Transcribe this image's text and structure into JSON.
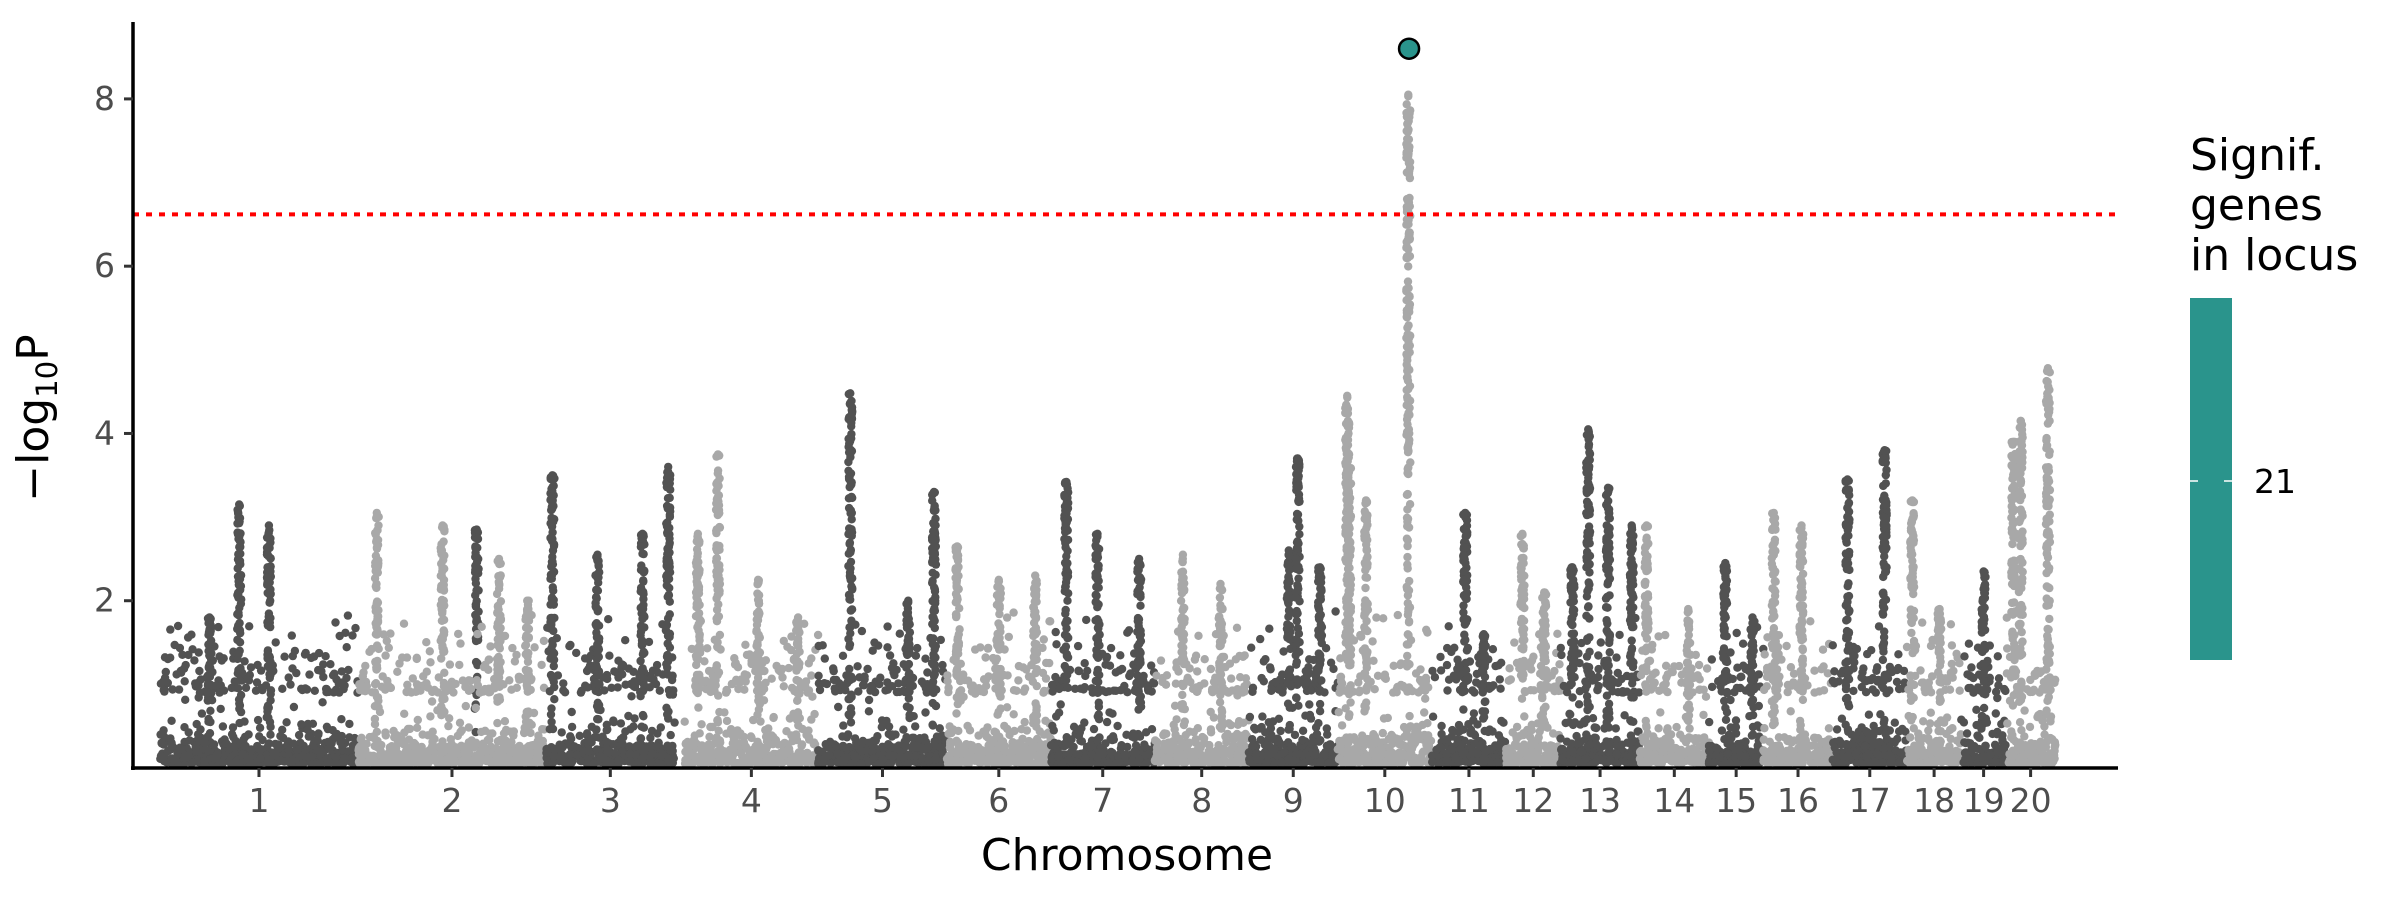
{
  "chart_data": {
    "type": "scatter",
    "subtype": "manhattan",
    "title": "",
    "xlabel": "Chromosome",
    "ylabel_prefix": "−log",
    "ylabel_subscript": "10",
    "ylabel_suffix": "P",
    "ylim": [
      0,
      8.8
    ],
    "yticks": [
      2,
      4,
      6,
      8
    ],
    "grid": false,
    "significance_threshold": 6.62,
    "colors": {
      "dark_point": "#525252",
      "light_point": "#a8a8a8",
      "highlight": "#2a948c",
      "threshold_line": "#ff0000",
      "axis": "#000000"
    },
    "chromosomes": [
      {
        "label": "1",
        "start": 0.0,
        "end": 2.0,
        "color": "dark",
        "max": 3.15,
        "peaks": [
          [
            0.4,
            3.15
          ],
          [
            0.55,
            2.9
          ],
          [
            0.25,
            1.8
          ],
          [
            1.6,
            2.85
          ]
        ]
      },
      {
        "label": "2",
        "start": 2.0,
        "end": 3.9,
        "color": "light",
        "max": 3.05,
        "peaks": [
          [
            0.1,
            3.05
          ],
          [
            0.45,
            2.9
          ],
          [
            0.75,
            2.5
          ],
          [
            0.9,
            2.0
          ]
        ]
      },
      {
        "label": "3",
        "start": 3.9,
        "end": 5.2,
        "color": "dark",
        "max": 3.6,
        "peaks": [
          [
            0.05,
            3.5
          ],
          [
            0.4,
            2.55
          ],
          [
            0.75,
            2.8
          ],
          [
            0.95,
            3.6
          ]
        ]
      },
      {
        "label": "4",
        "start": 5.3,
        "end": 6.65,
        "color": "light",
        "max": 3.75,
        "peaks": [
          [
            0.1,
            2.8
          ],
          [
            0.25,
            3.75
          ],
          [
            0.55,
            2.25
          ],
          [
            0.85,
            1.8
          ]
        ]
      },
      {
        "label": "5",
        "start": 6.65,
        "end": 7.95,
        "color": "dark",
        "max": 4.48,
        "peaks": [
          [
            0.25,
            4.48
          ],
          [
            0.7,
            2.0
          ],
          [
            0.9,
            3.3
          ]
        ]
      },
      {
        "label": "6",
        "start": 7.95,
        "end": 9.0,
        "color": "light",
        "max": 2.65,
        "peaks": [
          [
            0.1,
            2.65
          ],
          [
            0.5,
            2.25
          ],
          [
            0.85,
            2.3
          ]
        ]
      },
      {
        "label": "7",
        "start": 9.0,
        "end": 10.05,
        "color": "dark",
        "max": 3.42,
        "peaks": [
          [
            0.15,
            3.42
          ],
          [
            0.45,
            2.8
          ],
          [
            0.85,
            2.5
          ]
        ]
      },
      {
        "label": "8",
        "start": 10.05,
        "end": 11.0,
        "color": "light",
        "max": 2.55,
        "peaks": [
          [
            0.3,
            2.55
          ],
          [
            0.7,
            2.2
          ]
        ]
      },
      {
        "label": "9",
        "start": 11.0,
        "end": 11.9,
        "color": "dark",
        "max": 3.7,
        "peaks": [
          [
            0.45,
            2.6
          ],
          [
            0.55,
            3.7
          ],
          [
            0.8,
            2.4
          ]
        ]
      },
      {
        "label": "10",
        "start": 11.9,
        "end": 12.85,
        "color": "light",
        "max": 8.05,
        "peaks": [
          [
            0.1,
            4.45
          ],
          [
            0.12,
            3.75
          ],
          [
            0.3,
            3.2
          ],
          [
            0.75,
            8.05
          ]
        ]
      },
      {
        "label": "11",
        "start": 12.85,
        "end": 13.6,
        "color": "dark",
        "max": 3.05,
        "peaks": [
          [
            0.45,
            3.05
          ],
          [
            0.7,
            1.6
          ]
        ]
      },
      {
        "label": "12",
        "start": 13.6,
        "end": 14.15,
        "color": "light",
        "max": 2.8,
        "peaks": [
          [
            0.3,
            2.8
          ],
          [
            0.7,
            2.1
          ]
        ]
      },
      {
        "label": "13",
        "start": 14.15,
        "end": 14.95,
        "color": "dark",
        "max": 4.05,
        "peaks": [
          [
            0.15,
            2.4
          ],
          [
            0.35,
            4.05
          ],
          [
            0.6,
            3.35
          ],
          [
            0.9,
            2.9
          ]
        ]
      },
      {
        "label": "14",
        "start": 14.95,
        "end": 15.65,
        "color": "light",
        "max": 2.9,
        "peaks": [
          [
            0.1,
            2.9
          ],
          [
            0.7,
            1.9
          ]
        ]
      },
      {
        "label": "15",
        "start": 15.65,
        "end": 16.2,
        "color": "dark",
        "max": 2.45,
        "peaks": [
          [
            0.3,
            2.45
          ],
          [
            0.8,
            1.8
          ]
        ]
      },
      {
        "label": "16",
        "start": 16.2,
        "end": 16.9,
        "color": "light",
        "max": 3.05,
        "peaks": [
          [
            0.15,
            3.05
          ],
          [
            0.55,
            2.9
          ]
        ]
      },
      {
        "label": "17",
        "start": 16.9,
        "end": 17.65,
        "color": "dark",
        "max": 3.8,
        "peaks": [
          [
            0.2,
            3.45
          ],
          [
            0.7,
            3.8
          ]
        ]
      },
      {
        "label": "18",
        "start": 17.65,
        "end": 18.2,
        "color": "light",
        "max": 3.2,
        "peaks": [
          [
            0.1,
            3.2
          ],
          [
            0.6,
            1.9
          ]
        ]
      },
      {
        "label": "19",
        "start": 18.2,
        "end": 18.65,
        "color": "dark",
        "max": 2.35,
        "peaks": [
          [
            0.5,
            2.35
          ]
        ]
      },
      {
        "label": "20",
        "start": 18.65,
        "end": 19.15,
        "color": "light",
        "max": 4.78,
        "peaks": [
          [
            0.15,
            3.9
          ],
          [
            0.3,
            4.15
          ],
          [
            0.85,
            4.78
          ]
        ]
      }
    ],
    "highlight_point": {
      "chromosome": "10",
      "pos": 12.62,
      "y": 8.6
    },
    "legend": {
      "title_lines": [
        "Signif.",
        "genes",
        "in locus"
      ],
      "label": "21",
      "position": "right"
    }
  }
}
